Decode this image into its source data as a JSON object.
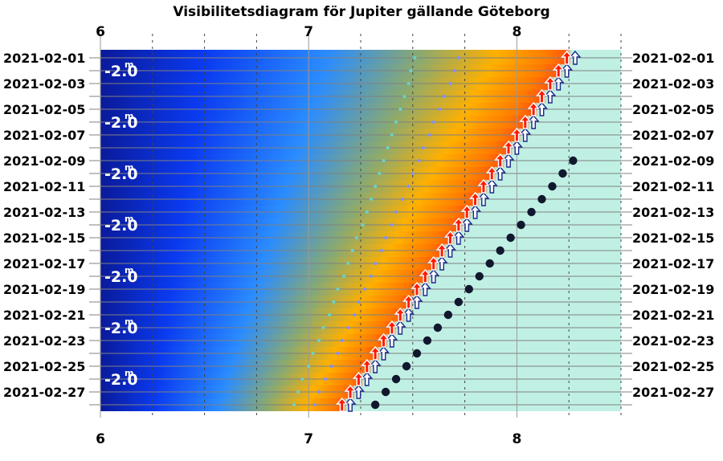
{
  "chart_data": {
    "type": "scatter",
    "title": "Visibilitetsdiagram för Jupiter gällande Göteborg",
    "x_ticks": [
      "6",
      "7",
      "8"
    ],
    "xlim": [
      6,
      8.5
    ],
    "date_labels": [
      "2021-02-01",
      "2021-02-03",
      "2021-02-05",
      "2021-02-07",
      "2021-02-09",
      "2021-02-11",
      "2021-02-13",
      "2021-02-15",
      "2021-02-17",
      "2021-02-19",
      "2021-02-21",
      "2021-02-23",
      "2021-02-25",
      "2021-02-27"
    ],
    "days": [
      "2021-02-01",
      "2021-02-02",
      "2021-02-03",
      "2021-02-04",
      "2021-02-05",
      "2021-02-06",
      "2021-02-07",
      "2021-02-08",
      "2021-02-09",
      "2021-02-10",
      "2021-02-11",
      "2021-02-12",
      "2021-02-13",
      "2021-02-14",
      "2021-02-15",
      "2021-02-16",
      "2021-02-17",
      "2021-02-18",
      "2021-02-19",
      "2021-02-20",
      "2021-02-21",
      "2021-02-22",
      "2021-02-23",
      "2021-02-24",
      "2021-02-25",
      "2021-02-26",
      "2021-02-27",
      "2021-02-28"
    ],
    "magnitude_labels": [
      "-2.0",
      "-2.0",
      "-2.0",
      "-2.0",
      "-2.0",
      "-2.0",
      "-2.0"
    ],
    "magnitude_unit": "m",
    "series": [
      {
        "marker": "small-dot",
        "color": "#8090ff",
        "x": [
          7.72,
          7.7,
          7.68,
          7.65,
          7.63,
          7.6,
          7.58,
          7.55,
          7.53,
          7.5,
          7.48,
          7.45,
          7.42,
          7.4,
          7.37,
          7.35,
          7.32,
          7.3,
          7.27,
          7.24,
          7.22,
          7.19,
          7.16,
          7.14,
          7.11,
          7.08,
          7.05,
          7.03
        ]
      },
      {
        "marker": "small-dot",
        "color": "#66d2d0",
        "x": [
          7.51,
          7.49,
          7.48,
          7.46,
          7.44,
          7.42,
          7.4,
          7.38,
          7.36,
          7.34,
          7.32,
          7.3,
          7.28,
          7.26,
          7.23,
          7.21,
          7.19,
          7.17,
          7.14,
          7.12,
          7.1,
          7.07,
          7.05,
          7.02,
          7.0,
          6.97,
          6.95,
          6.93
        ]
      },
      {
        "marker": "arrow-white",
        "color": "#ffffff",
        "x": [
          8.28,
          8.24,
          8.2,
          8.16,
          8.12,
          8.08,
          8.04,
          8.0,
          7.96,
          7.92,
          7.88,
          7.84,
          7.8,
          7.76,
          7.72,
          7.68,
          7.64,
          7.6,
          7.56,
          7.52,
          7.48,
          7.44,
          7.4,
          7.36,
          7.32,
          7.28,
          7.24,
          7.2
        ]
      },
      {
        "marker": "arrow-red",
        "color": "#ff1a00",
        "x": [
          8.24,
          8.2,
          8.16,
          8.12,
          8.08,
          8.04,
          8.0,
          7.96,
          7.92,
          7.88,
          7.84,
          7.8,
          7.76,
          7.72,
          7.68,
          7.64,
          7.6,
          7.56,
          7.52,
          7.48,
          7.44,
          7.4,
          7.36,
          7.32,
          7.28,
          7.24,
          7.2,
          7.16
        ]
      },
      {
        "marker": "large-dot",
        "color": "#10182e",
        "x": [
          8.27,
          8.22,
          8.17,
          8.12,
          8.07,
          8.02,
          7.97,
          7.92,
          7.87,
          7.82,
          7.77,
          7.72,
          7.67,
          7.62,
          7.57,
          7.52,
          7.47,
          7.42,
          7.37,
          7.32
        ]
      }
    ]
  }
}
